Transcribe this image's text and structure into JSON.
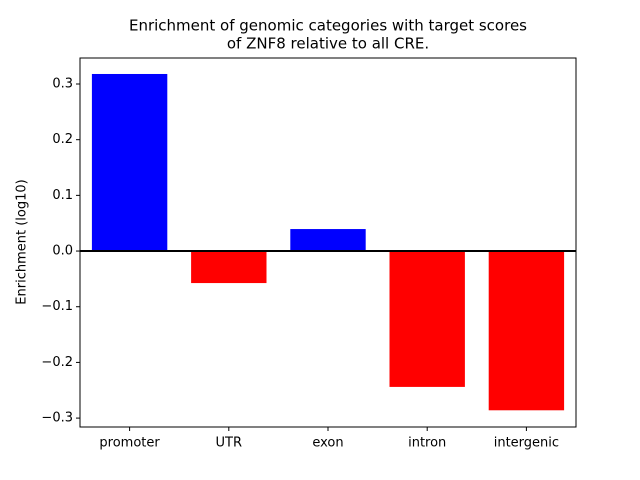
{
  "chart_data": {
    "type": "bar",
    "title": [
      "Enrichment of genomic categories with target scores",
      "of ZNF8 relative to all CRE."
    ],
    "y_label": "Enrichment (log10)",
    "categories": [
      "promoter",
      "UTR",
      "exon",
      "intron",
      "intergenic"
    ],
    "values": [
      0.318,
      -0.0575,
      0.0395,
      -0.244,
      -0.286
    ],
    "colors": [
      "#0000ff",
      "#ff0000",
      "#0000ff",
      "#ff0000",
      "#ff0000"
    ],
    "ylim": [
      -0.316,
      0.3467
    ],
    "yticks": [
      {
        "value": -0.3,
        "label": "−0.3"
      },
      {
        "value": -0.2,
        "label": "−0.2"
      },
      {
        "value": -0.1,
        "label": "−0.1"
      },
      {
        "value": 0,
        "label": "0.0"
      },
      0.1,
      0.2,
      0.3
    ],
    "reference_line": 0,
    "grid": false
  }
}
